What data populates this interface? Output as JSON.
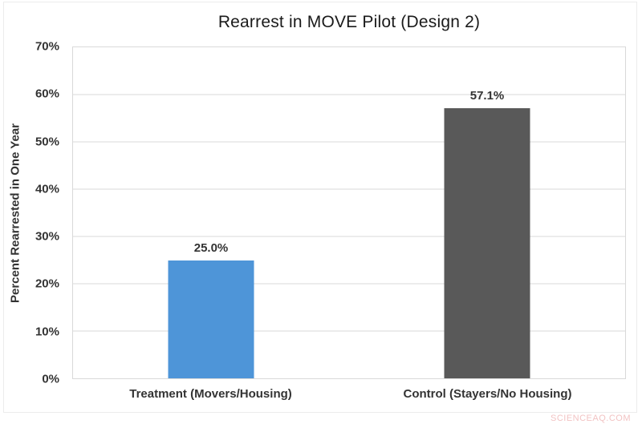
{
  "watermark": "SCIENCEAQ.COM",
  "chart_data": {
    "type": "bar",
    "title": "Rearrest in MOVE Pilot (Design 2)",
    "xlabel": "",
    "ylabel": "Percent Rearrested in One Year",
    "categories": [
      "Treatment (Movers/Housing)",
      "Control (Stayers/No Housing)"
    ],
    "values": [
      25.0,
      57.1
    ],
    "value_labels": [
      "25.0%",
      "57.1%"
    ],
    "bar_names": [
      "bar-treatment",
      "bar-control"
    ],
    "bar_colors": [
      "#4e95d8",
      "#595959"
    ],
    "ylim": [
      0,
      70
    ],
    "ytick_values": [
      0,
      10,
      20,
      30,
      40,
      50,
      60,
      70
    ],
    "ytick_labels": [
      "0%",
      "10%",
      "20%",
      "30%",
      "40%",
      "50%",
      "60%",
      "70%"
    ],
    "grid": true,
    "legend": "none",
    "colors": {
      "gridline": "#d9d9d9",
      "plot_border": "#d9d9d9",
      "text": "#333333",
      "title_text": "#1a1a1a",
      "watermark_text": "#f2c3c3"
    }
  }
}
